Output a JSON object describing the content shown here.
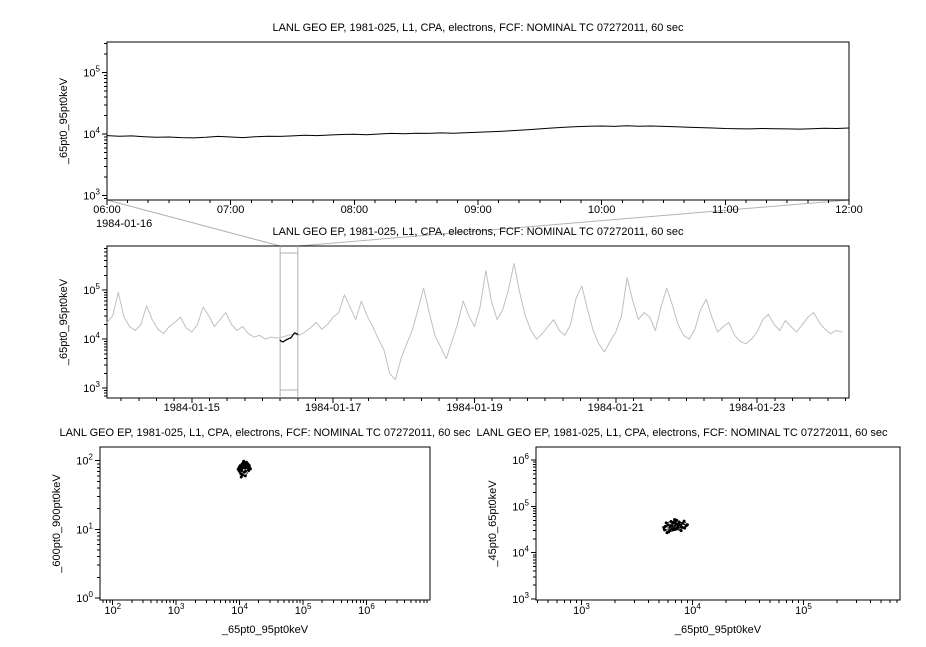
{
  "page": {
    "bg": "#ffffff",
    "frame_color": "#000000",
    "text_color": "#000000"
  },
  "connector": {
    "from": "top",
    "to": "context",
    "color": "#b4b4b4"
  },
  "chart_data": [
    {
      "id": "top",
      "type": "line",
      "title": "LANL GEO EP, 1981-025, L1, CPA, electrons, FCF: NOMINAL TC 07272011, 60 sec",
      "xlabel": "",
      "ylabel": "_65pt0_95pt0keV",
      "x_axis": {
        "type": "linear",
        "lim": [
          6,
          12
        ],
        "minor_step": 0.1666667,
        "context_label": "1984-01-16",
        "ticks": [
          {
            "v": 6,
            "label": "06:00"
          },
          {
            "v": 7,
            "label": "07:00"
          },
          {
            "v": 8,
            "label": "08:00"
          },
          {
            "v": 9,
            "label": "09:00"
          },
          {
            "v": 10,
            "label": "10:00"
          },
          {
            "v": 11,
            "label": "11:00"
          },
          {
            "v": 12,
            "label": "12:00"
          }
        ]
      },
      "y_axis": {
        "type": "log",
        "lim_exp": [
          2.93,
          5.5
        ],
        "decades": [
          3,
          4,
          5
        ]
      },
      "series": [
        {
          "kind": "line",
          "color": "#000000",
          "width": 1,
          "x0": 6,
          "dx": 0.1,
          "y": [
            9500,
            9300,
            9400,
            9100,
            8900,
            9000,
            8800,
            8700,
            8900,
            9200,
            9000,
            8800,
            9100,
            9300,
            9200,
            9400,
            9600,
            9500,
            9700,
            9900,
            10000,
            9800,
            10100,
            10300,
            10200,
            10400,
            10300,
            10500,
            10400,
            10600,
            10800,
            11000,
            11200,
            11500,
            11800,
            12200,
            12600,
            13000,
            13300,
            13500,
            13600,
            13400,
            13700,
            13500,
            13600,
            13400,
            13200,
            13000,
            12800,
            12600,
            12400,
            12300,
            12200,
            12400,
            12300,
            12200,
            12100,
            12300,
            12500,
            12400,
            12600
          ]
        }
      ]
    },
    {
      "id": "context",
      "type": "line",
      "title": "LANL GEO EP, 1981-025, L1, CPA, electrons, FCF: NOMINAL TC 07272011, 60 sec",
      "xlabel": "",
      "ylabel": "_65pt0_95pt0keV",
      "x_axis": {
        "type": "linear",
        "lim": [
          13.8,
          24.3
        ],
        "minor_step": 0.25,
        "ticks": [
          {
            "v": 15,
            "label": "1984-01-15"
          },
          {
            "v": 17,
            "label": "1984-01-17"
          },
          {
            "v": 19,
            "label": "1984-01-19"
          },
          {
            "v": 21,
            "label": "1984-01-21"
          },
          {
            "v": 23,
            "label": "1984-01-23"
          }
        ]
      },
      "y_axis": {
        "type": "log",
        "lim_exp": [
          2.8,
          5.9
        ],
        "decades": [
          3,
          4,
          5
        ]
      },
      "selection": {
        "x0": 16.25,
        "x1": 16.5,
        "color": "#b0b0b0"
      },
      "series": [
        {
          "kind": "line",
          "color": "#c0c0c0",
          "width": 1,
          "x0": 13.8,
          "dx": 0.08,
          "y_scale": 1000,
          "y": [
            22,
            30,
            90,
            28,
            18,
            15,
            20,
            48,
            25,
            16,
            13,
            18,
            22,
            28,
            17,
            14,
            20,
            45,
            30,
            18,
            25,
            35,
            20,
            15,
            18,
            13,
            11,
            12,
            10,
            11,
            10.5,
            11,
            12,
            12.5,
            12,
            14,
            17,
            22,
            16,
            20,
            28,
            35,
            80,
            45,
            25,
            60,
            30,
            18,
            10,
            6,
            2,
            1.5,
            4,
            8,
            15,
            40,
            110,
            35,
            12,
            7,
            4,
            9,
            20,
            60,
            30,
            18,
            45,
            250,
            60,
            25,
            40,
            100,
            350,
            90,
            30,
            15,
            10,
            13,
            18,
            25,
            15,
            12,
            20,
            70,
            120,
            40,
            15,
            8,
            5.5,
            9,
            14,
            30,
            180,
            60,
            25,
            35,
            28,
            15,
            45,
            110,
            50,
            20,
            12,
            10,
            16,
            40,
            65,
            28,
            14,
            18,
            22,
            12,
            9,
            8,
            10,
            14,
            25,
            32,
            20,
            15,
            24,
            18,
            14,
            20,
            28,
            35,
            22,
            16,
            13,
            15,
            14
          ]
        },
        {
          "kind": "line",
          "color": "#000000",
          "width": 1.3,
          "x0": 16.25,
          "dx": 0.0208333,
          "y": [
            9500,
            9000,
            8800,
            9200,
            9600,
            10000,
            10300,
            10500,
            11200,
            12600,
            13500,
            13000,
            12500
          ]
        }
      ]
    },
    {
      "id": "scatter-left",
      "type": "scatter",
      "title": "LANL GEO EP, 1981-025, L1, CPA, electrons, FCF: NOMINAL TC 07272011, 60 sec",
      "xlabel": "_65pt0_95pt0keV",
      "ylabel": "_600pt0_900pt0keV",
      "x_axis": {
        "type": "log",
        "lim_exp": [
          1.8,
          7.0
        ],
        "decades": [
          2,
          3,
          4,
          5,
          6
        ]
      },
      "y_axis": {
        "type": "log",
        "lim_exp": [
          -0.03,
          2.2
        ],
        "decades": [
          0,
          1,
          2
        ]
      },
      "series": [
        {
          "kind": "scatter",
          "connect": true,
          "color": "#000000",
          "r": 1.5,
          "x": [
            9500,
            9800,
            10200,
            10500,
            11000,
            11500,
            12000,
            12500,
            13000,
            13500,
            10800,
            11200,
            12200,
            12800,
            13200,
            14000,
            14500,
            13800,
            12400,
            11800,
            10400,
            9900,
            10100,
            11400,
            12600,
            13400,
            14200,
            12100,
            11600,
            10900,
            13900,
            14800,
            12300,
            11100,
            10600
          ],
          "y": [
            75,
            80,
            85,
            78,
            90,
            95,
            88,
            92,
            85,
            90,
            72,
            80,
            78,
            95,
            88,
            82,
            78,
            75,
            70,
            68,
            65,
            70,
            76,
            84,
            86,
            80,
            85,
            92,
            98,
            88,
            72,
            76,
            60,
            62,
            58
          ]
        }
      ]
    },
    {
      "id": "scatter-right",
      "type": "scatter",
      "title": "LANL GEO EP, 1981-025, L1, CPA, electrons, FCF: NOMINAL TC 07272011, 60 sec",
      "xlabel": "_65pt0_95pt0keV",
      "ylabel": "_45pt0_65pt0keV",
      "x_axis": {
        "type": "log",
        "lim_exp": [
          2.59,
          5.87
        ],
        "decades": [
          3,
          4,
          5
        ]
      },
      "y_axis": {
        "type": "log",
        "lim_exp": [
          2.98,
          6.28
        ],
        "decades": [
          3,
          4,
          5,
          6
        ]
      },
      "series": [
        {
          "kind": "scatter",
          "connect": true,
          "color": "#000000",
          "r": 1.5,
          "x": [
            5500,
            6000,
            6500,
            7000,
            7500,
            8000,
            6200,
            6800,
            7200,
            5800,
            6400,
            7800,
            8500,
            6100,
            5600,
            7400,
            8200,
            6900,
            6300,
            7100,
            5900,
            8800,
            7600,
            6600,
            7300,
            8400,
            9000,
            6700,
            5700,
            7900
          ],
          "y": [
            35000,
            40000,
            38000,
            45000,
            42000,
            36000,
            30000,
            33000,
            50000,
            44000,
            47000,
            39000,
            34000,
            28000,
            31000,
            37000,
            43000,
            52000,
            36000,
            41000,
            27000,
            38000,
            46000,
            32000,
            35000,
            48000,
            40000,
            44000,
            37000,
            30000
          ]
        }
      ]
    }
  ]
}
